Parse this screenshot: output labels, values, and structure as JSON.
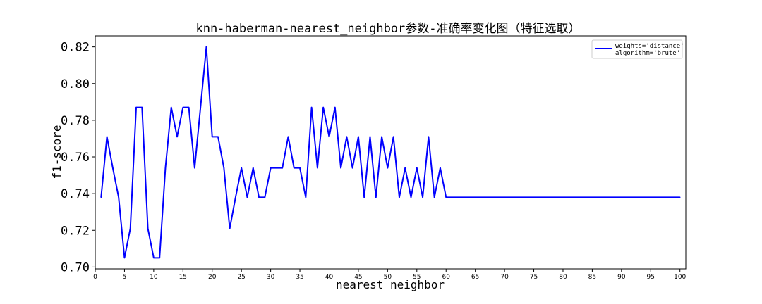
{
  "chart_data": {
    "type": "line",
    "title": "knn-haberman-nearest_neighbor参数-准确率变化图（特征选取）",
    "xlabel": "nearest_neighbor",
    "ylabel": "f1-score",
    "xlim": [
      0,
      101
    ],
    "ylim": [
      0.699,
      0.826
    ],
    "xticks": [
      0,
      5,
      10,
      15,
      20,
      25,
      30,
      35,
      40,
      45,
      50,
      55,
      60,
      65,
      70,
      75,
      80,
      85,
      90,
      95,
      100
    ],
    "yticks": [
      0.7,
      0.72,
      0.74,
      0.76,
      0.78,
      0.8,
      0.82
    ],
    "grid": false,
    "legend_position": "top-right",
    "legend": [
      "weights='distance'",
      "algorithm='brute'"
    ],
    "series": [
      {
        "color": "#0000ff",
        "x": [
          1,
          2,
          3,
          4,
          5,
          6,
          7,
          8,
          9,
          10,
          11,
          12,
          13,
          14,
          15,
          16,
          17,
          18,
          19,
          20,
          21,
          22,
          23,
          24,
          25,
          26,
          27,
          28,
          29,
          30,
          31,
          32,
          33,
          34,
          35,
          36,
          37,
          38,
          39,
          40,
          41,
          42,
          43,
          44,
          45,
          46,
          47,
          48,
          49,
          50,
          51,
          52,
          53,
          54,
          55,
          56,
          57,
          58,
          59,
          60,
          61,
          62,
          63,
          64,
          65,
          66,
          67,
          68,
          69,
          70,
          71,
          72,
          73,
          74,
          75,
          76,
          77,
          78,
          79,
          80,
          81,
          82,
          83,
          84,
          85,
          86,
          87,
          88,
          89,
          90,
          91,
          92,
          93,
          94,
          95,
          96,
          97,
          98,
          99,
          100
        ],
        "y": [
          0.738,
          0.771,
          0.754,
          0.738,
          0.705,
          0.721,
          0.787,
          0.787,
          0.721,
          0.705,
          0.705,
          0.754,
          0.787,
          0.771,
          0.787,
          0.787,
          0.754,
          0.787,
          0.82,
          0.771,
          0.771,
          0.754,
          0.721,
          0.738,
          0.754,
          0.738,
          0.754,
          0.738,
          0.738,
          0.754,
          0.754,
          0.754,
          0.771,
          0.754,
          0.754,
          0.738,
          0.787,
          0.754,
          0.787,
          0.771,
          0.787,
          0.754,
          0.771,
          0.754,
          0.771,
          0.738,
          0.771,
          0.738,
          0.771,
          0.754,
          0.771,
          0.738,
          0.754,
          0.738,
          0.754,
          0.738,
          0.771,
          0.738,
          0.754,
          0.738,
          0.738,
          0.738,
          0.738,
          0.738,
          0.738,
          0.738,
          0.738,
          0.738,
          0.738,
          0.738,
          0.738,
          0.738,
          0.738,
          0.738,
          0.738,
          0.738,
          0.738,
          0.738,
          0.738,
          0.738,
          0.738,
          0.738,
          0.738,
          0.738,
          0.738,
          0.738,
          0.738,
          0.738,
          0.738,
          0.738,
          0.738,
          0.738,
          0.738,
          0.738,
          0.738,
          0.738,
          0.738,
          0.738,
          0.738,
          0.738
        ]
      }
    ]
  }
}
